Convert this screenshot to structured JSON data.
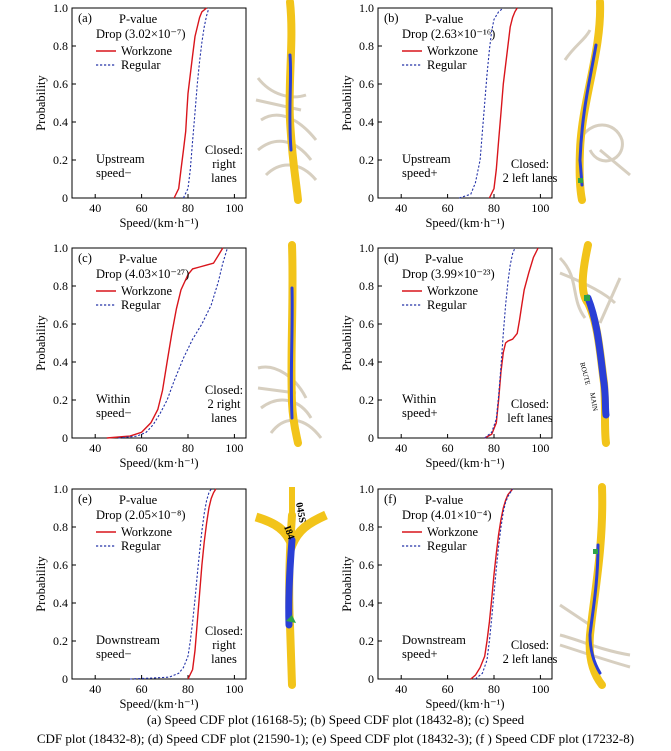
{
  "chart_data": [
    {
      "type": "line",
      "label": "(a)",
      "pvalue_label": "P-value",
      "drop_label": "Drop (3.02×10⁻⁷)",
      "xlabel": "Speed/(km·h⁻¹)",
      "ylabel": "Probability",
      "xlim": [
        30,
        105
      ],
      "ylim": [
        0,
        1.0
      ],
      "xticks": [
        "40",
        "60",
        "80",
        "100"
      ],
      "yticks": [
        "0",
        "0.2",
        "0.4",
        "0.6",
        "0.8",
        "1.0"
      ],
      "left_annotation": [
        "Upstream",
        "speed−"
      ],
      "right_annotation": [
        "Closed:",
        "right",
        "lanes"
      ],
      "series": [
        {
          "name": "Workzone",
          "color": "#d9151c",
          "dash": false,
          "x": [
            74,
            76,
            77,
            78,
            79,
            79.5,
            80,
            81,
            82,
            83,
            84,
            85,
            86,
            88
          ],
          "y": [
            0,
            0.05,
            0.15,
            0.25,
            0.35,
            0.45,
            0.55,
            0.65,
            0.75,
            0.85,
            0.9,
            0.95,
            0.98,
            1.0
          ]
        },
        {
          "name": "Regular",
          "color": "#2433a8",
          "dash": true,
          "x": [
            78,
            80,
            81,
            82,
            83,
            84,
            85,
            86,
            87,
            88,
            89
          ],
          "y": [
            0,
            0.05,
            0.15,
            0.3,
            0.45,
            0.6,
            0.72,
            0.82,
            0.9,
            0.96,
            1.0
          ]
        }
      ]
    },
    {
      "type": "line",
      "label": "(b)",
      "pvalue_label": "P-value",
      "drop_label": "Drop (2.63×10⁻¹⁶)",
      "xlabel": "Speed/(km·h⁻¹)",
      "ylabel": "Probability",
      "xlim": [
        30,
        105
      ],
      "ylim": [
        0,
        1.0
      ],
      "xticks": [
        "40",
        "60",
        "80",
        "100"
      ],
      "yticks": [
        "0",
        "0.2",
        "0.4",
        "0.6",
        "0.8",
        "1.0"
      ],
      "left_annotation": [
        "Upstream",
        "speed+"
      ],
      "right_annotation": [
        "Closed:",
        "2 left lanes"
      ],
      "series": [
        {
          "name": "Workzone",
          "color": "#d9151c",
          "dash": false,
          "x": [
            78,
            80,
            81,
            82,
            83,
            84,
            85,
            86,
            87,
            88,
            89,
            90
          ],
          "y": [
            0,
            0.05,
            0.15,
            0.3,
            0.45,
            0.6,
            0.7,
            0.8,
            0.9,
            0.95,
            0.98,
            1.0
          ]
        },
        {
          "name": "Regular",
          "color": "#2433a8",
          "dash": true,
          "x": [
            65,
            70,
            72,
            74,
            75,
            76,
            77,
            78,
            79,
            80,
            82,
            84
          ],
          "y": [
            0,
            0.02,
            0.08,
            0.2,
            0.35,
            0.5,
            0.65,
            0.78,
            0.88,
            0.94,
            0.98,
            1.0
          ]
        }
      ]
    },
    {
      "type": "line",
      "label": "(c)",
      "pvalue_label": "P-value",
      "drop_label": "Drop (4.03×10⁻²⁷)",
      "xlabel": "Speed/(km·h⁻¹)",
      "ylabel": "Probability",
      "xlim": [
        30,
        105
      ],
      "ylim": [
        0,
        1.0
      ],
      "xticks": [
        "40",
        "60",
        "80",
        "100"
      ],
      "yticks": [
        "0",
        "0.2",
        "0.4",
        "0.6",
        "0.8",
        "1.0"
      ],
      "left_annotation": [
        "Within",
        "speed−"
      ],
      "right_annotation": [
        "Closed:",
        "2 right",
        "lanes"
      ],
      "series": [
        {
          "name": "Workzone",
          "color": "#d9151c",
          "dash": false,
          "x": [
            45,
            55,
            60,
            64,
            67,
            69,
            71,
            73,
            75,
            77,
            80,
            82,
            85,
            88,
            91,
            93,
            95
          ],
          "y": [
            0,
            0.01,
            0.03,
            0.08,
            0.15,
            0.25,
            0.4,
            0.55,
            0.68,
            0.78,
            0.86,
            0.89,
            0.9,
            0.91,
            0.92,
            0.96,
            1.0
          ]
        },
        {
          "name": "Regular",
          "color": "#2433a8",
          "dash": true,
          "x": [
            50,
            58,
            62,
            65,
            68,
            71,
            74,
            78,
            82,
            86,
            90,
            93,
            95,
            97
          ],
          "y": [
            0,
            0.01,
            0.03,
            0.07,
            0.13,
            0.2,
            0.3,
            0.42,
            0.52,
            0.6,
            0.7,
            0.82,
            0.92,
            1.0
          ]
        }
      ]
    },
    {
      "type": "line",
      "label": "(d)",
      "pvalue_label": "P-value",
      "drop_label": "Drop (3.99×10⁻²³)",
      "xlabel": "Speed/(km·h⁻¹)",
      "ylabel": "Probability",
      "xlim": [
        30,
        105
      ],
      "ylim": [
        0,
        1.0
      ],
      "xticks": [
        "40",
        "60",
        "80",
        "100"
      ],
      "yticks": [
        "0",
        "0.2",
        "0.4",
        "0.6",
        "0.8",
        "1.0"
      ],
      "left_annotation": [
        "Within",
        "speed+"
      ],
      "right_annotation": [
        "Closed:",
        "left lanes"
      ],
      "series": [
        {
          "name": "Workzone",
          "color": "#d9151c",
          "dash": false,
          "x": [
            76,
            79,
            81,
            82,
            83,
            84,
            85,
            86,
            88,
            90,
            91,
            92,
            93,
            95,
            97,
            99
          ],
          "y": [
            0,
            0.02,
            0.08,
            0.2,
            0.35,
            0.45,
            0.5,
            0.51,
            0.52,
            0.55,
            0.62,
            0.7,
            0.78,
            0.87,
            0.95,
            1.0
          ]
        },
        {
          "name": "Regular",
          "color": "#2433a8",
          "dash": true,
          "x": [
            76,
            79,
            81,
            82,
            83,
            84,
            85,
            86,
            87,
            88,
            89
          ],
          "y": [
            0,
            0.03,
            0.1,
            0.22,
            0.38,
            0.55,
            0.7,
            0.82,
            0.91,
            0.97,
            1.0
          ]
        }
      ]
    },
    {
      "type": "line",
      "label": "(e)",
      "pvalue_label": "P-value",
      "drop_label": "Drop (2.05×10⁻⁸)",
      "xlabel": "Speed/(km·h⁻¹)",
      "ylabel": "Probability",
      "xlim": [
        30,
        105
      ],
      "ylim": [
        0,
        1.0
      ],
      "xticks": [
        "40",
        "60",
        "80",
        "100"
      ],
      "yticks": [
        "0",
        "0.2",
        "0.4",
        "0.6",
        "0.8",
        "1.0"
      ],
      "left_annotation": [
        "Downstream",
        "speed−"
      ],
      "right_annotation": [
        "Closed:",
        "right",
        "lanes"
      ],
      "series": [
        {
          "name": "Workzone",
          "color": "#d9151c",
          "dash": false,
          "x": [
            80,
            82,
            83,
            84,
            85,
            86,
            87,
            88,
            89,
            90,
            91,
            92
          ],
          "y": [
            0,
            0.05,
            0.15,
            0.3,
            0.45,
            0.6,
            0.72,
            0.82,
            0.9,
            0.95,
            0.98,
            1.0
          ]
        },
        {
          "name": "Regular",
          "color": "#2433a8",
          "dash": true,
          "x": [
            55,
            65,
            72,
            76,
            78,
            80,
            81,
            82,
            83,
            84,
            85,
            86,
            87,
            88,
            89,
            90
          ],
          "y": [
            0,
            0.005,
            0.01,
            0.03,
            0.06,
            0.12,
            0.2,
            0.3,
            0.42,
            0.55,
            0.67,
            0.78,
            0.87,
            0.94,
            0.98,
            1.0
          ]
        }
      ]
    },
    {
      "type": "line",
      "label": "(f)",
      "pvalue_label": "P-value",
      "drop_label": "Drop (4.01×10⁻⁴)",
      "xlabel": "Speed/(km·h⁻¹)",
      "ylabel": "Probability",
      "xlim": [
        30,
        105
      ],
      "ylim": [
        0,
        1.0
      ],
      "xticks": [
        "40",
        "60",
        "80",
        "100"
      ],
      "yticks": [
        "0",
        "0.2",
        "0.4",
        "0.6",
        "0.8",
        "1.0"
      ],
      "left_annotation": [
        "Downstream",
        "speed+"
      ],
      "right_annotation": [
        "Closed:",
        "2 left lanes"
      ],
      "series": [
        {
          "name": "Workzone",
          "color": "#d9151c",
          "dash": false,
          "x": [
            70,
            72,
            74,
            76,
            77,
            78,
            79,
            80,
            81,
            82,
            83,
            84,
            85,
            86,
            88
          ],
          "y": [
            0,
            0.02,
            0.06,
            0.12,
            0.2,
            0.3,
            0.42,
            0.55,
            0.66,
            0.76,
            0.84,
            0.9,
            0.94,
            0.97,
            1.0
          ]
        },
        {
          "name": "Regular",
          "color": "#2433a8",
          "dash": true,
          "x": [
            72,
            75,
            77,
            78,
            79,
            80,
            81,
            82,
            83,
            84,
            85,
            86,
            87,
            88
          ],
          "y": [
            0,
            0.03,
            0.1,
            0.2,
            0.32,
            0.45,
            0.58,
            0.7,
            0.8,
            0.88,
            0.93,
            0.96,
            0.98,
            1.0
          ]
        }
      ]
    }
  ],
  "legend": {
    "workzone": "Workzone",
    "regular": "Regular"
  },
  "maps": [
    {
      "road_labels": []
    },
    {
      "road_labels": []
    },
    {
      "road_labels": []
    },
    {
      "road_labels": [
        "ROUTE",
        "MAIN"
      ]
    },
    {
      "road_labels": [
        "045S",
        "I84"
      ]
    },
    {
      "road_labels": []
    }
  ],
  "caption": {
    "line1": "(a) Speed CDF plot (16168-5); (b) Speed CDF plot (18432-8); (c) Speed",
    "line2": "CDF plot (18432-8); (d) Speed CDF plot (21590-1); (e) Speed CDF plot (18432-3); (f ) Speed CDF plot (17232-8)"
  }
}
